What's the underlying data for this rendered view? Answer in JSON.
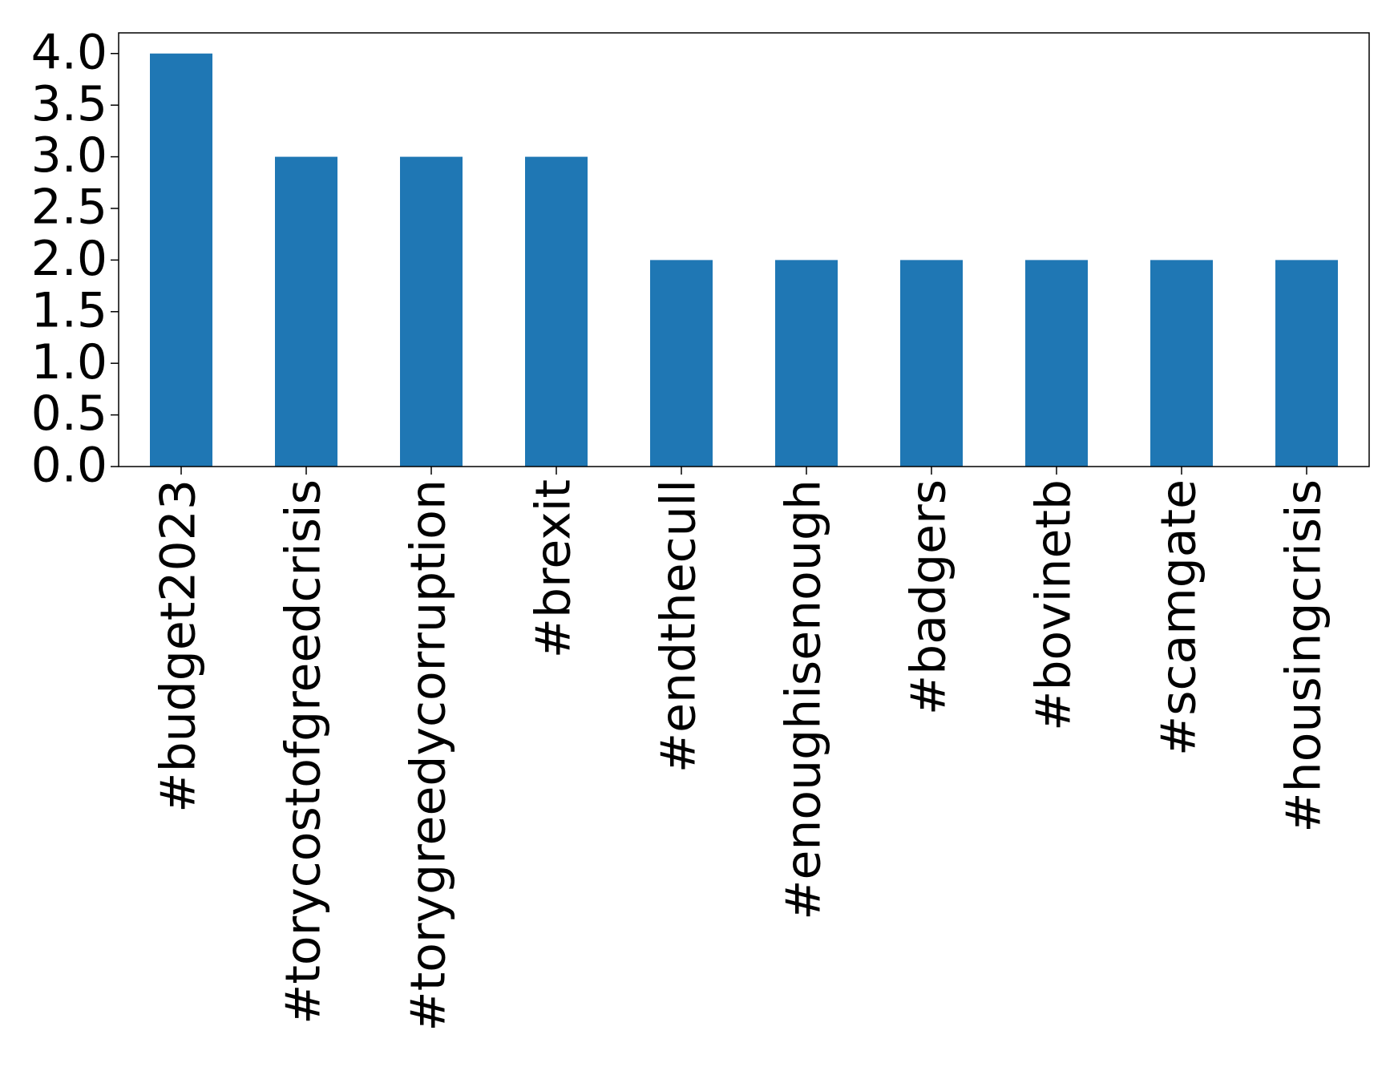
{
  "chart_data": {
    "type": "bar",
    "categories": [
      "#budget2023",
      "#torycostofgreedcrisis",
      "#torygreedycorruption",
      "#brexit",
      "#endthecull",
      "#enoughisenough",
      "#badgers",
      "#bovinetb",
      "#scamgate",
      "#housingcrisis"
    ],
    "values": [
      4,
      3,
      3,
      3,
      2,
      2,
      2,
      2,
      2,
      2
    ],
    "color": "#1f77b4",
    "ylim": [
      0,
      4.2
    ],
    "yticks": [
      {
        "value": 0,
        "label": "0.0"
      },
      0.5,
      {
        "value": 1,
        "label": "1.0"
      },
      1.5,
      {
        "value": 2,
        "label": "2.0"
      },
      2.5,
      {
        "value": 3,
        "label": "3.0"
      },
      3.5,
      {
        "value": 4,
        "label": "4.0"
      }
    ],
    "grid": false
  }
}
